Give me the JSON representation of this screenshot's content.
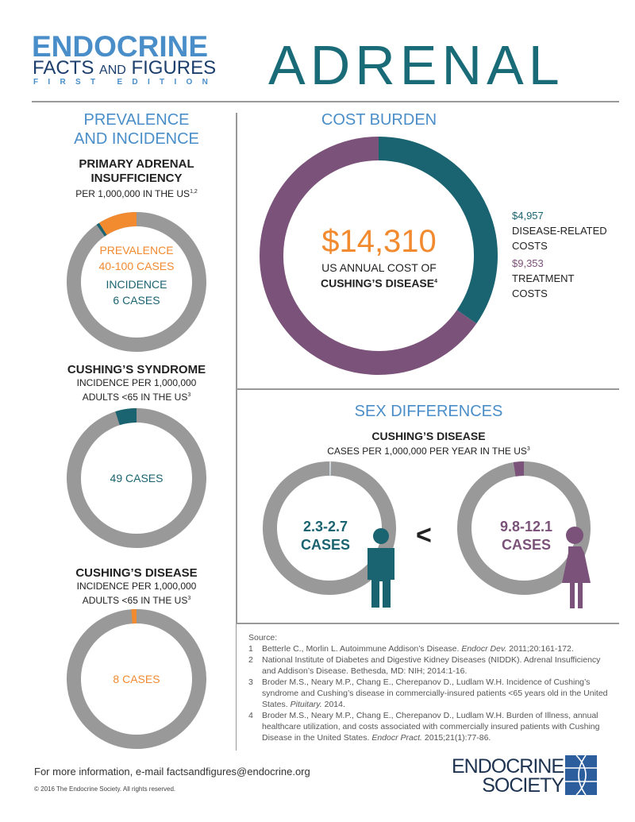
{
  "header": {
    "logo_line1": "ENDOCRINE",
    "logo_line2a": "FACTS",
    "logo_line2b": "AND",
    "logo_line2c": "FIGURES",
    "logo_line3": "FIRST EDITION",
    "title": "ADRENAL"
  },
  "colors": {
    "teal": "#1a6370",
    "purple": "#7b5279",
    "orange": "#f28a30",
    "gray": "#999999",
    "blue": "#4a8ec9"
  },
  "prevalence": {
    "heading1": "PREVALENCE",
    "heading2": "AND INCIDENCE",
    "pai": {
      "title1": "PRIMARY ADRENAL",
      "title2": "INSUFFICIENCY",
      "sub": "PER 1,000,000 IN THE US",
      "sup": "1,2",
      "prev_label": "PREVALENCE",
      "prev_value": "40-100 CASES",
      "inc_label": "INCIDENCE",
      "inc_value": "6 CASES",
      "segments": [
        {
          "color": "orange",
          "share": 0.09
        },
        {
          "color": "teal",
          "share": 0.007
        }
      ]
    },
    "cs": {
      "title": "CUSHING’S SYNDROME",
      "sub1": "INCIDENCE PER 1,000,000",
      "sub2": "ADULTS <65 IN THE US",
      "sup": "3",
      "value": "49 CASES",
      "segments": [
        {
          "color": "teal",
          "share": 0.049
        }
      ]
    },
    "cd": {
      "title": "CUSHING’S DISEASE",
      "sub1": "INCIDENCE PER 1,000,000",
      "sub2": "ADULTS <65 IN THE US",
      "sup": "3",
      "value": "8 CASES",
      "segments": [
        {
          "color": "orange",
          "share": 0.012
        }
      ]
    }
  },
  "cost": {
    "heading": "COST BURDEN",
    "total": "$14,310",
    "caption1": "US ANNUAL COST OF",
    "caption2": "CUSHING’S DISEASE",
    "sup": "4",
    "disease_value": "$4,957",
    "disease_label1": "DISEASE-RELATED",
    "disease_label2": "COSTS",
    "treatment_value": "$9,353",
    "treatment_label1": "TREATMENT",
    "treatment_label2": "COSTS",
    "segments": [
      {
        "color": "teal",
        "amount": 4957
      },
      {
        "color": "purple",
        "amount": 9353
      }
    ]
  },
  "sex": {
    "heading": "SEX DIFFERENCES",
    "title": "CUSHING’S DISEASE",
    "sub": "CASES PER 1,000,000 PER YEAR IN THE US",
    "sup": "3",
    "male_value": "2.3-2.7",
    "male_unit": "CASES",
    "female_value": "9.8-12.1",
    "female_unit": "CASES",
    "comparator": "<"
  },
  "sources": {
    "label": "Source:",
    "items": [
      {
        "n": "1",
        "text": "Betterle C., Morlin L. Autoimmune Addison’s Disease. <i>Endocr Dev.</i> 2011;20:161-172."
      },
      {
        "n": "2",
        "text": "National Institute of Diabetes and Digestive Kidney Diseases (NIDDK). Adrenal Insufficiency and Addison’s Disease. Bethesda, MD: NIH; 2014:1-16."
      },
      {
        "n": "3",
        "text": "Broder M.S., Neary M.P., Chang E., Cherepanov D., Ludlam W.H. Incidence of Cushing’s syndrome and Cushing’s disease in commercially-insured patients <65 years old in the United States. <i>Pituitary.</i> 2014."
      },
      {
        "n": "4",
        "text": "Broder M.S., Neary M.P., Chang E., Cherepanov D., Ludlam W.H. Burden of Illness, annual healthcare utilization, and costs associated with commercially insured patients with Cushing Disease in the United States. <i>Endocr Pract.</i> 2015;21(1):77-86."
      }
    ]
  },
  "footer": {
    "info": "For more information, e-mail factsandfigures@endocrine.org",
    "copyright": "© 2016 The Endocrine Society. All rights reserved.",
    "society1": "ENDOCRINE",
    "society2": "SOCIETY"
  }
}
